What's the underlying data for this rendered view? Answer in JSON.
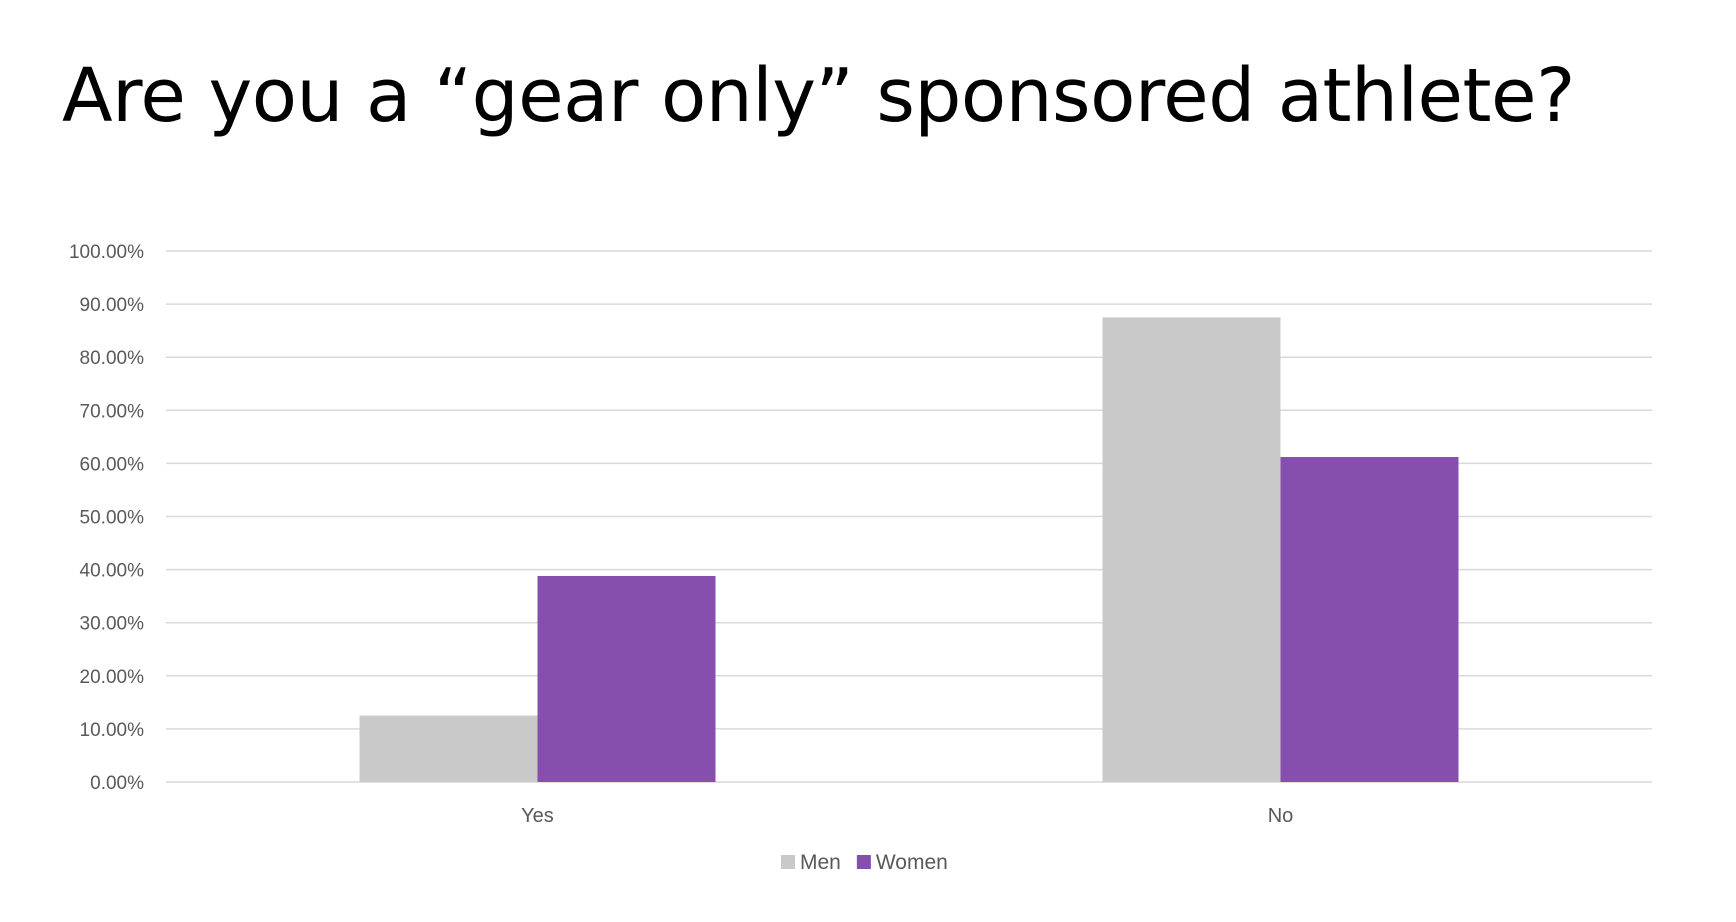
{
  "slide": {
    "title": "Are you a “gear only” sponsored athlete?"
  },
  "colors": {
    "men": "#c9c9c9",
    "women": "#864fae",
    "grid": "#d9d9d9",
    "axis_text": "#595959"
  },
  "chart_data": {
    "type": "bar",
    "title": "",
    "xlabel": "",
    "ylabel": "",
    "categories": [
      "Yes",
      "No"
    ],
    "series": [
      {
        "name": "Men",
        "values": [
          12.5,
          87.5
        ]
      },
      {
        "name": "Women",
        "values": [
          38.8,
          61.2
        ]
      }
    ],
    "ylim": [
      0,
      100
    ],
    "yticks": [
      0,
      10,
      20,
      30,
      40,
      50,
      60,
      70,
      80,
      90,
      100
    ],
    "ytick_labels": [
      "0.00%",
      "10.00%",
      "20.00%",
      "30.00%",
      "40.00%",
      "50.00%",
      "60.00%",
      "70.00%",
      "80.00%",
      "90.00%",
      "100.00%"
    ],
    "grid": true,
    "legend": "bottom-center"
  }
}
